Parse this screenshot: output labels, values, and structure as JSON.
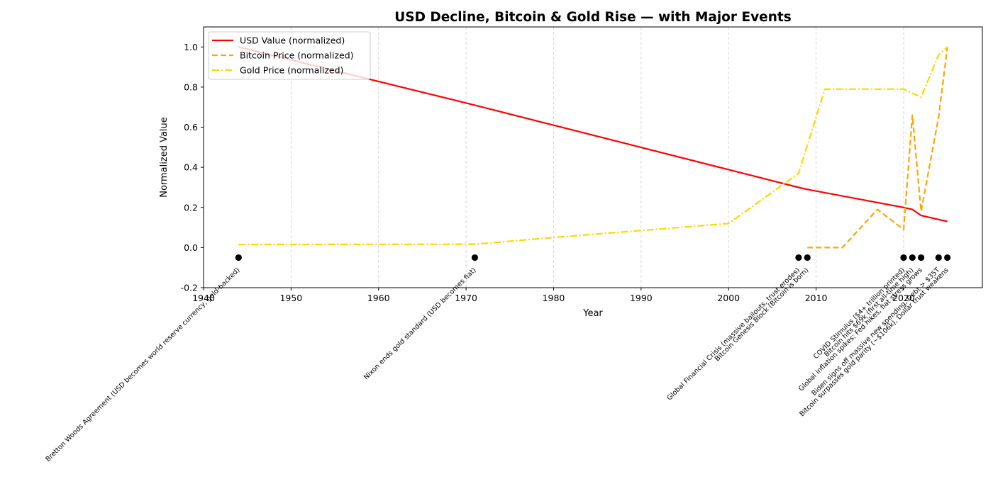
{
  "chart_data": {
    "type": "line",
    "title": "USD Decline, Bitcoin & Gold Rise — with Major Events",
    "xlabel": "Year",
    "ylabel": "Normalized Value",
    "xlim": [
      1940,
      2029
    ],
    "ylim": [
      -0.2,
      1.1
    ],
    "xticks": [
      1940,
      1950,
      1960,
      1970,
      1980,
      1990,
      2000,
      2010,
      2020
    ],
    "yticks": [
      -0.2,
      0.0,
      0.2,
      0.4,
      0.6,
      0.8,
      1.0
    ],
    "grid": "x-dashed",
    "legend_position": "upper-left",
    "series": [
      {
        "name": "USD Value (normalized)",
        "color": "#ff0000",
        "style": "solid",
        "x": [
          1944,
          1971,
          2008,
          2009,
          2020,
          2021,
          2022,
          2024,
          2025
        ],
        "y": [
          1.0,
          0.71,
          0.3,
          0.29,
          0.2,
          0.19,
          0.16,
          0.14,
          0.13
        ]
      },
      {
        "name": "Bitcoin Price (normalized)",
        "color": "#ffa500",
        "style": "dashed",
        "x": [
          2009,
          2013,
          2017,
          2020,
          2021,
          2022,
          2024,
          2025
        ],
        "y": [
          0.0,
          0.0,
          0.19,
          0.09,
          0.66,
          0.18,
          0.65,
          1.0
        ]
      },
      {
        "name": "Gold Price (normalized)",
        "color": "#ffd700",
        "style": "dashdot",
        "x": [
          1944,
          1971,
          1980,
          2000,
          2008,
          2011,
          2020,
          2022,
          2024,
          2025
        ],
        "y": [
          0.015,
          0.017,
          0.05,
          0.12,
          0.37,
          0.79,
          0.79,
          0.75,
          0.96,
          1.0
        ]
      }
    ],
    "events": [
      {
        "year": 1944,
        "y": -0.05,
        "label": "Bretton Woods Agreement (USD becomes world reserve currency, gold-backed)"
      },
      {
        "year": 1971,
        "y": -0.05,
        "label": "Nixon ends gold standard (USD becomes fiat)"
      },
      {
        "year": 2008,
        "y": -0.05,
        "label": "Global Financial Crisis (massive bailouts, trust erodes)"
      },
      {
        "year": 2009,
        "y": -0.05,
        "label": "Bitcoin Genesis Block (Bitcoin is born)"
      },
      {
        "year": 2020,
        "y": -0.05,
        "label": "COVID Stimulus ($4+ trillion printed)"
      },
      {
        "year": 2021,
        "y": -0.05,
        "label": "Bitcoin hits $69k (first all-time high)"
      },
      {
        "year": 2022,
        "y": -0.05,
        "label": "Global inflation spikes; Fed hikes, fiat stress grows"
      },
      {
        "year": 2024,
        "y": -0.05,
        "label": "Biden signs off massive new spending, Debt > $35T"
      },
      {
        "year": 2025,
        "y": -0.05,
        "label": "Bitcoin surpasses gold parity (~$106k), Dollar trust weakens"
      }
    ]
  }
}
